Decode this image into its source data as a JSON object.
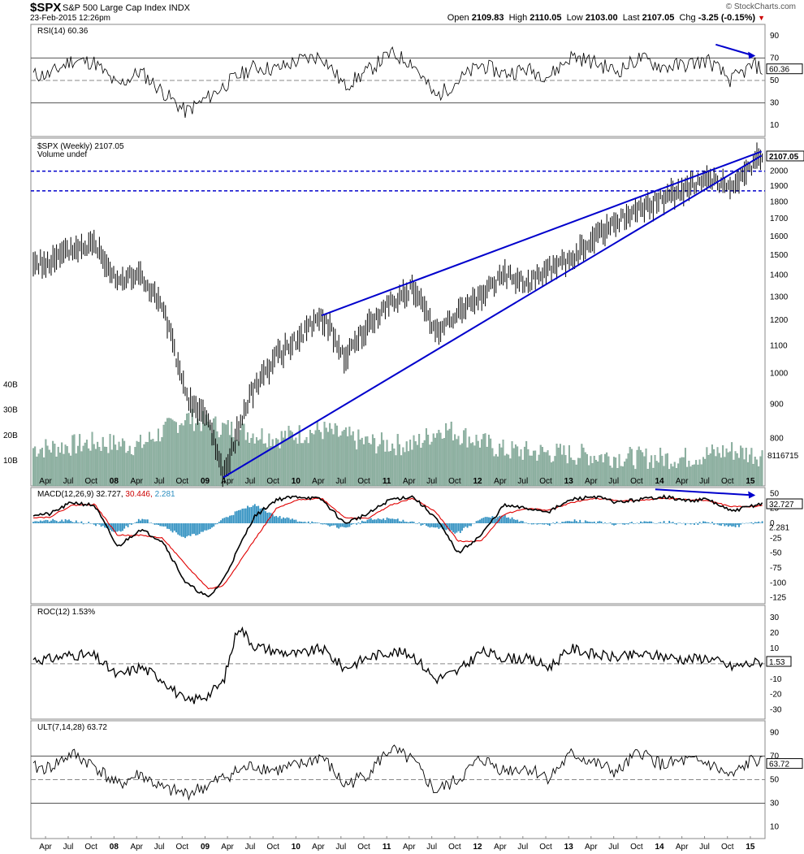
{
  "header": {
    "symbol": "$SPX",
    "name": "S&P 500 Large Cap Index",
    "exchange": "INDX",
    "date": "23-Feb-2015 12:26pm",
    "brand": "© StockCharts.com",
    "open_label": "Open",
    "open": "2109.83",
    "high_label": "High",
    "high": "2110.05",
    "low_label": "Low",
    "low": "2103.00",
    "last_label": "Last",
    "last": "2107.05",
    "chg_label": "Chg",
    "chg": "-3.25 (-0.15%)",
    "chg_arrow": "▼"
  },
  "x_axis_labels": [
    "Apr",
    "Jul",
    "Oct",
    "08",
    "Apr",
    "Jul",
    "Oct",
    "09",
    "Apr",
    "Jul",
    "Oct",
    "10",
    "Apr",
    "Jul",
    "Oct",
    "11",
    "Apr",
    "Jul",
    "Oct",
    "12",
    "Apr",
    "Jul",
    "Oct",
    "13",
    "Apr",
    "Jul",
    "Oct",
    "14",
    "Apr",
    "Jul",
    "Oct",
    "15"
  ],
  "colors": {
    "price": "#000000",
    "trendline": "#0000cc",
    "volume": "#8fb4a4",
    "macd_signal": "#e00000",
    "macd_hist": "#2e8fc0",
    "overbought_fill": "#5c8a5c",
    "oversold_fill": "#a06060"
  },
  "chart_data": [
    {
      "type": "line",
      "panel": "RSI",
      "legend": "RSI(14) 60.36",
      "last_value": "60.36",
      "y_ticks": [
        90,
        70,
        50,
        30,
        10
      ],
      "ylim": [
        0,
        100
      ],
      "reference_lines": [
        70,
        50,
        30
      ],
      "x": [
        "2007-04",
        "2007-07",
        "2007-10",
        "2008-01",
        "2008-04",
        "2008-07",
        "2008-10",
        "2009-01",
        "2009-04",
        "2009-07",
        "2009-10",
        "2010-01",
        "2010-04",
        "2010-07",
        "2010-10",
        "2011-01",
        "2011-04",
        "2011-07",
        "2011-10",
        "2012-01",
        "2012-04",
        "2012-07",
        "2012-10",
        "2013-01",
        "2013-04",
        "2013-07",
        "2013-10",
        "2014-01",
        "2014-04",
        "2014-07",
        "2014-10",
        "2015-01",
        "2015-02"
      ],
      "values": [
        55,
        68,
        66,
        45,
        58,
        40,
        22,
        35,
        50,
        62,
        60,
        68,
        72,
        45,
        58,
        74,
        66,
        35,
        50,
        64,
        56,
        60,
        54,
        72,
        66,
        58,
        70,
        62,
        64,
        68,
        50,
        64,
        60
      ]
    },
    {
      "type": "candlestick",
      "panel": "Price",
      "legend": "$SPX (Weekly) 2107.05",
      "volume_legend": "Volume undef",
      "last_value": "2107.05",
      "y_ticks": [
        2000,
        1900,
        1800,
        1700,
        1600,
        1500,
        1400,
        1300,
        1200,
        1100,
        1000,
        900,
        800
      ],
      "y_scale": "log",
      "horizontal_lines": [
        2000,
        1870
      ],
      "x": [
        "2007-04",
        "2007-07",
        "2007-10",
        "2008-01",
        "2008-04",
        "2008-07",
        "2008-10",
        "2009-01",
        "2009-03",
        "2009-07",
        "2009-10",
        "2010-01",
        "2010-04",
        "2010-07",
        "2010-10",
        "2011-01",
        "2011-04",
        "2011-07",
        "2011-10",
        "2012-01",
        "2012-04",
        "2012-07",
        "2012-10",
        "2013-01",
        "2013-04",
        "2013-07",
        "2013-10",
        "2014-01",
        "2014-04",
        "2014-07",
        "2014-10",
        "2015-01",
        "2015-02"
      ],
      "values": [
        1460,
        1530,
        1560,
        1380,
        1400,
        1250,
        920,
        850,
        700,
        950,
        1060,
        1130,
        1220,
        1060,
        1170,
        1280,
        1340,
        1160,
        1230,
        1310,
        1400,
        1360,
        1430,
        1480,
        1590,
        1690,
        1750,
        1830,
        1880,
        1970,
        1870,
        2050,
        2107
      ],
      "trendlines": [
        {
          "from": [
            "2009-03",
            700
          ],
          "to": [
            "2015-02",
            2110
          ]
        },
        {
          "from": [
            "2010-04",
            1220
          ],
          "to": [
            "2015-02",
            2140
          ]
        }
      ]
    },
    {
      "type": "bar",
      "panel": "Volume",
      "y_ticks": [
        "40B",
        "30B",
        "20B",
        "10B"
      ],
      "last_value": "8116715",
      "x": [
        "2007-04",
        "2007-10",
        "2008-04",
        "2008-10",
        "2009-03",
        "2009-10",
        "2010-04",
        "2010-10",
        "2011-04",
        "2011-08",
        "2012-04",
        "2012-10",
        "2013-04",
        "2013-10",
        "2014-04",
        "2014-10",
        "2015-02"
      ],
      "values": [
        15,
        17,
        16,
        27,
        23,
        19,
        22,
        17,
        16,
        23,
        14,
        13,
        12,
        11,
        11,
        14,
        12
      ]
    },
    {
      "type": "line",
      "panel": "MACD",
      "legend_prefix": "MACD(12,26,9)",
      "legend_macd": "32.727",
      "legend_signal": "30.446",
      "legend_hist": "2.281",
      "y_ticks": [
        50,
        25,
        0,
        -25,
        -50,
        -75,
        -100,
        -125
      ],
      "ylim": [
        -135,
        60
      ],
      "x": [
        "2007-04",
        "2007-07",
        "2007-10",
        "2008-01",
        "2008-04",
        "2008-07",
        "2008-10",
        "2009-01",
        "2009-03",
        "2009-07",
        "2009-10",
        "2010-01",
        "2010-04",
        "2010-07",
        "2010-10",
        "2011-01",
        "2011-04",
        "2011-07",
        "2011-10",
        "2012-01",
        "2012-04",
        "2012-07",
        "2012-10",
        "2013-01",
        "2013-04",
        "2013-07",
        "2013-10",
        "2014-01",
        "2014-04",
        "2014-07",
        "2014-10",
        "2015-01",
        "2015-02"
      ],
      "series": [
        {
          "name": "MACD",
          "values": [
            15,
            35,
            30,
            -40,
            -10,
            -30,
            -100,
            -125,
            -95,
            10,
            40,
            45,
            40,
            0,
            15,
            40,
            45,
            10,
            -50,
            -20,
            30,
            25,
            20,
            40,
            45,
            35,
            40,
            45,
            38,
            40,
            20,
            30,
            33
          ]
        },
        {
          "name": "Signal",
          "values": [
            10,
            30,
            32,
            -20,
            -20,
            -25,
            -70,
            -110,
            -105,
            -30,
            25,
            40,
            42,
            10,
            8,
            30,
            42,
            20,
            -30,
            -30,
            15,
            25,
            22,
            35,
            42,
            38,
            38,
            42,
            40,
            38,
            28,
            28,
            30
          ]
        }
      ]
    },
    {
      "type": "line",
      "panel": "ROC",
      "legend": "ROC(12) 1.53%",
      "last_value": "1.53",
      "y_ticks": [
        30,
        20,
        10,
        0,
        -10,
        -20,
        -30
      ],
      "ylim": [
        -36,
        38
      ],
      "x": [
        "2007-04",
        "2007-07",
        "2007-10",
        "2008-01",
        "2008-04",
        "2008-07",
        "2008-10",
        "2009-01",
        "2009-03",
        "2009-05",
        "2009-07",
        "2009-10",
        "2010-01",
        "2010-04",
        "2010-07",
        "2010-10",
        "2011-01",
        "2011-04",
        "2011-07",
        "2011-10",
        "2012-01",
        "2012-04",
        "2012-07",
        "2012-10",
        "2013-01",
        "2013-04",
        "2013-07",
        "2013-10",
        "2014-01",
        "2014-04",
        "2014-07",
        "2014-10",
        "2015-02"
      ],
      "values": [
        3,
        6,
        5,
        -8,
        -2,
        -10,
        -25,
        -20,
        -12,
        25,
        12,
        8,
        6,
        10,
        -3,
        4,
        8,
        6,
        -10,
        -5,
        8,
        4,
        3,
        -2,
        10,
        6,
        4,
        6,
        5,
        3,
        4,
        -2,
        1.53
      ]
    },
    {
      "type": "line",
      "panel": "ULT",
      "legend": "ULT(7,14,28) 63.72",
      "last_value": "63.72",
      "y_ticks": [
        90,
        70,
        50,
        30,
        10
      ],
      "ylim": [
        0,
        100
      ],
      "reference_lines": [
        70,
        50,
        30
      ],
      "x": [
        "2007-04",
        "2007-07",
        "2007-10",
        "2008-01",
        "2008-04",
        "2008-07",
        "2008-10",
        "2009-01",
        "2009-04",
        "2009-07",
        "2009-10",
        "2010-01",
        "2010-04",
        "2010-07",
        "2010-10",
        "2011-01",
        "2011-04",
        "2011-07",
        "2011-10",
        "2012-01",
        "2012-04",
        "2012-07",
        "2012-10",
        "2013-01",
        "2013-04",
        "2013-07",
        "2013-10",
        "2014-01",
        "2014-04",
        "2014-07",
        "2014-10",
        "2015-01",
        "2015-02"
      ],
      "values": [
        60,
        72,
        62,
        45,
        55,
        42,
        38,
        45,
        55,
        62,
        58,
        62,
        70,
        45,
        55,
        76,
        66,
        40,
        50,
        68,
        58,
        60,
        52,
        72,
        64,
        56,
        74,
        62,
        66,
        64,
        52,
        68,
        63.72
      ]
    }
  ]
}
